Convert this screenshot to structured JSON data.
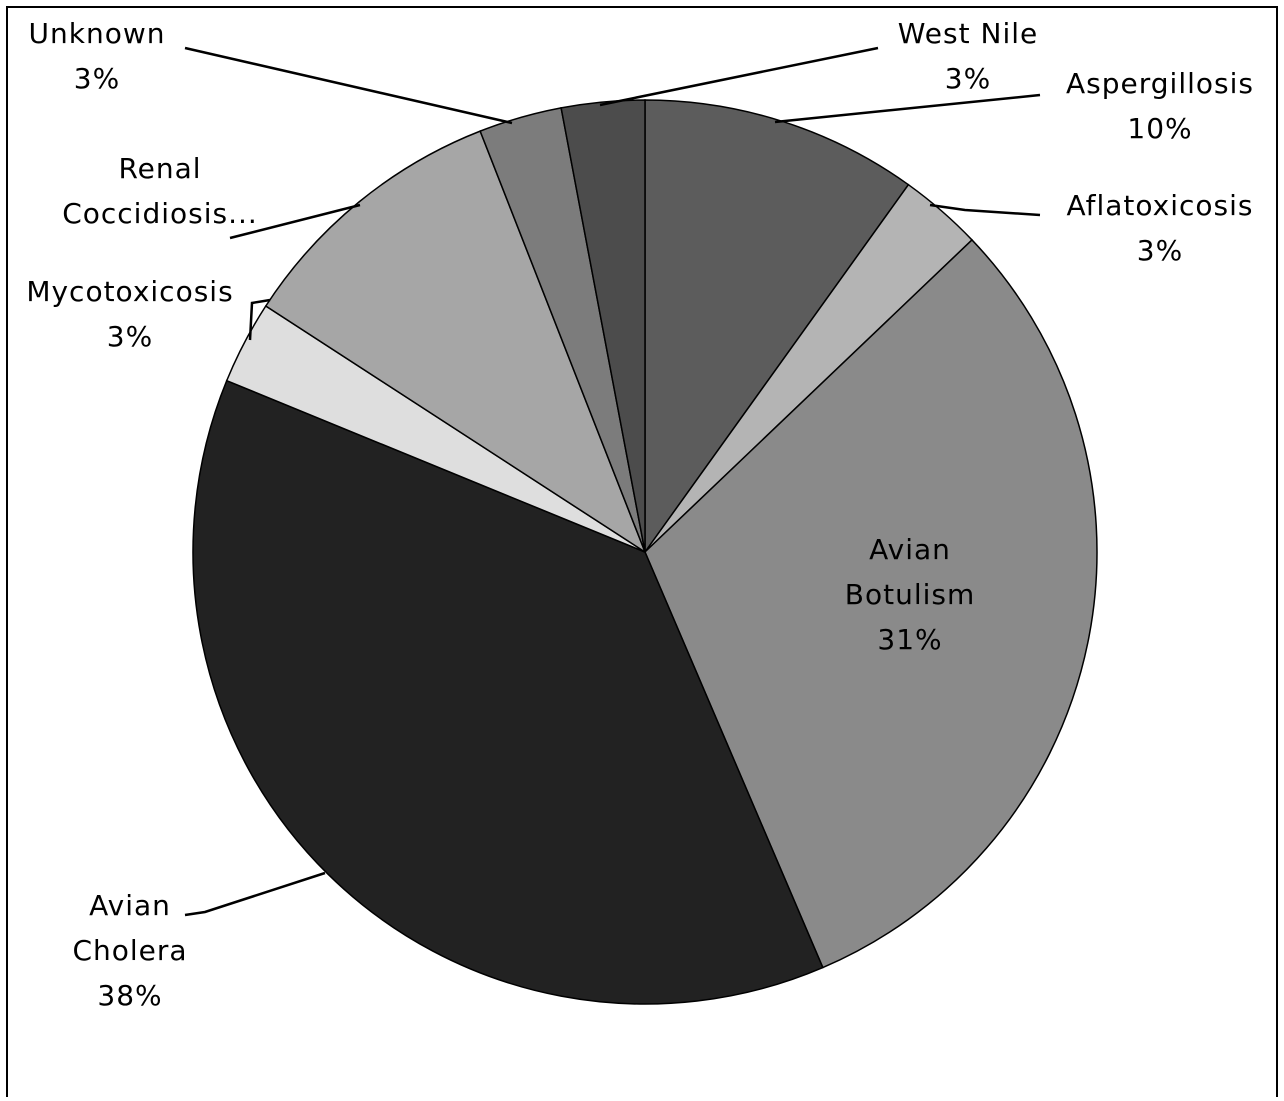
{
  "chart_data": {
    "type": "pie",
    "categories": [
      "Aspergillosis",
      "Aflatoxicosis",
      "Avian Botulism",
      "Avian Cholera",
      "Mycotoxicosis",
      "Renal Coccidiosis...",
      "Unknown",
      "West Nile"
    ],
    "values": [
      10,
      3,
      31,
      38,
      3,
      10,
      3,
      3
    ],
    "value_labels": [
      "10%",
      "3%",
      "31%",
      "38%",
      "3%",
      null,
      "3%",
      "3%"
    ],
    "colors": [
      "#5c5c5c",
      "#b4b4b4",
      "#8a8a8a",
      "#222222",
      "#dedede",
      "#a6a6a6",
      "#7c7c7c",
      "#4c4c4c"
    ]
  }
}
